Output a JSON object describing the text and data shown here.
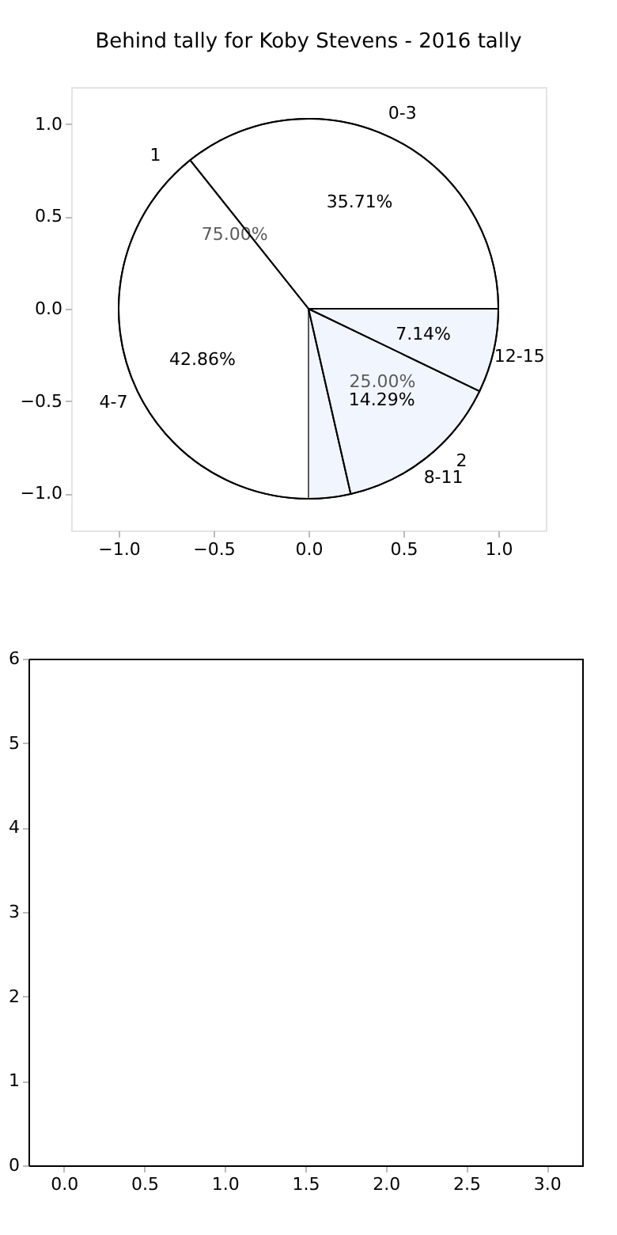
{
  "chart_data": [
    {
      "type": "scatter",
      "title": "Behind tally for Koby Stevens - 2016 tally",
      "xlim": [
        -1.25,
        1.25
      ],
      "ylim": [
        -1.2,
        1.2
      ],
      "xticks": [
        {
          "value": -1,
          "label": "−1.0"
        },
        {
          "value": -0.5,
          "label": "−0.5"
        },
        {
          "value": 0,
          "label": "0.0"
        },
        {
          "value": 0.5,
          "label": "0.5"
        },
        {
          "value": 1,
          "label": "1.0"
        }
      ],
      "yticks": [
        {
          "value": -1,
          "label": "−1.0"
        },
        {
          "value": -0.5,
          "label": "−0.5"
        },
        {
          "value": 0,
          "label": "0.0"
        },
        {
          "value": 0.5,
          "label": "0.5"
        },
        {
          "value": 1,
          "label": "1.0"
        }
      ]
    },
    {
      "type": "pie",
      "categories": [
        "1",
        "2"
      ],
      "values": [
        75,
        25
      ],
      "value_labels": [
        "75.00%",
        "25.00%"
      ],
      "colors": [
        "#ffffff",
        "#eaf0fc"
      ]
    },
    {
      "type": "pie",
      "categories": [
        "0-3",
        "4-7",
        "8-11",
        "12-15"
      ],
      "values": [
        35.71,
        42.86,
        14.29,
        7.14
      ],
      "value_labels": [
        "35.71%",
        "42.86%",
        "14.29%",
        "7.14%"
      ],
      "colors": [
        "#ffffff",
        "#ffffff",
        "#ffffff",
        "#ffffff"
      ]
    },
    {
      "type": "scatter",
      "xlim": [
        -0.22,
        3.22
      ],
      "ylim": [
        0,
        6
      ],
      "xticks": [
        {
          "value": 0,
          "label": "0.0"
        },
        {
          "value": 0.5,
          "label": "0.5"
        },
        {
          "value": 1,
          "label": "1.0"
        },
        {
          "value": 1.5,
          "label": "1.5"
        },
        {
          "value": 2,
          "label": "2.0"
        },
        {
          "value": 2.5,
          "label": "2.5"
        },
        {
          "value": 3,
          "label": "3.0"
        }
      ],
      "yticks": [
        0,
        1,
        2,
        3,
        4,
        5,
        6
      ]
    }
  ]
}
